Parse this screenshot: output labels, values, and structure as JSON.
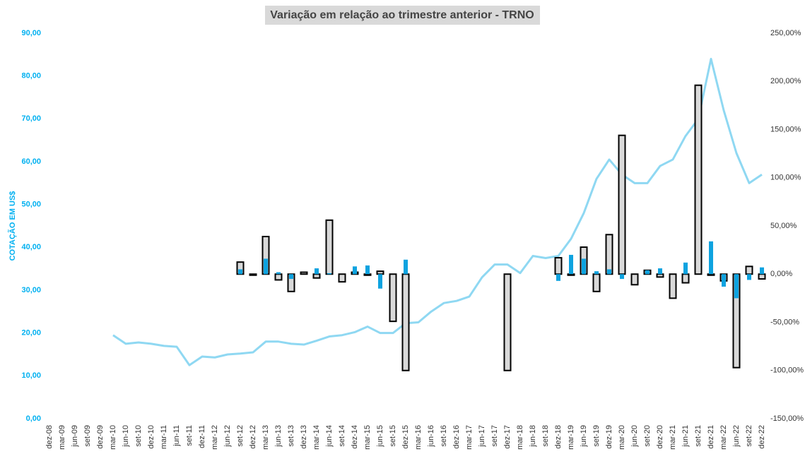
{
  "chart_data": {
    "type": "combo",
    "title": "Variação em relação ao trimestre anterior - TRNO",
    "y_label": "COTAÇÃO EM US$",
    "categories": [
      "dez-08",
      "mar-09",
      "jun-09",
      "set-09",
      "dez-09",
      "mar-10",
      "jun-10",
      "set-10",
      "dez-10",
      "mar-11",
      "jun-11",
      "set-11",
      "dez-11",
      "mar-12",
      "jun-12",
      "set-12",
      "dez-12",
      "mar-13",
      "jun-13",
      "set-13",
      "dez-13",
      "mar-14",
      "jun-14",
      "set-14",
      "dez-14",
      "mar-15",
      "jun-15",
      "set-15",
      "dez-15",
      "mar-16",
      "jun-16",
      "set-16",
      "dez-16",
      "mar-17",
      "jun-17",
      "set-17",
      "dez-17",
      "mar-18",
      "jun-18",
      "set-18",
      "dez-18",
      "mar-19",
      "jun-19",
      "set-19",
      "dez-19",
      "mar-20",
      "jun-20",
      "set-20",
      "dez-20",
      "mar-21",
      "jun-21",
      "set-21",
      "dez-21",
      "mar-22",
      "jun-22",
      "set-22",
      "dez-22"
    ],
    "series": [
      {
        "type": "bar",
        "axis": "y2",
        "color": "#d9d9d9",
        "stroke": "#000000",
        "values": [
          null,
          null,
          null,
          null,
          null,
          null,
          null,
          null,
          null,
          null,
          null,
          null,
          null,
          null,
          null,
          12.5,
          -1,
          39,
          -6,
          -18,
          2,
          -4,
          56,
          -8,
          2,
          -1,
          3,
          -49,
          -100,
          null,
          null,
          null,
          null,
          null,
          null,
          null,
          -100,
          null,
          null,
          null,
          17,
          -1,
          28,
          -18,
          41,
          144,
          -11,
          4,
          -3,
          -25,
          -9,
          196,
          -1,
          -7,
          -97,
          8,
          -5
        ]
      },
      {
        "type": "bar",
        "axis": "y2",
        "color": "#0ea3e0",
        "values": [
          null,
          null,
          null,
          null,
          null,
          null,
          null,
          null,
          null,
          null,
          null,
          null,
          null,
          null,
          null,
          5,
          null,
          16,
          2,
          -5,
          null,
          6,
          1,
          null,
          8,
          9,
          -15,
          null,
          15,
          null,
          null,
          null,
          null,
          null,
          null,
          null,
          null,
          null,
          null,
          null,
          -7,
          20,
          16,
          3,
          5,
          -5,
          null,
          4,
          6,
          null,
          12,
          null,
          34,
          -13,
          -25,
          -6,
          7
        ]
      },
      {
        "type": "line",
        "axis": "y",
        "color": "#8fd8f2",
        "values": [
          null,
          null,
          null,
          null,
          null,
          19.5,
          17.5,
          17.8,
          17.5,
          17.0,
          16.8,
          12.5,
          14.5,
          14.3,
          15.0,
          15.2,
          15.5,
          18.0,
          18.0,
          17.5,
          17.3,
          18.2,
          19.2,
          19.5,
          20.2,
          21.5,
          20.0,
          20.0,
          22.3,
          22.5,
          25.0,
          27.0,
          27.5,
          28.5,
          33.0,
          36.0,
          36.0,
          34.0,
          38.0,
          37.5,
          38.0,
          42.0,
          48.0,
          56.0,
          60.5,
          57.0,
          55.0,
          55.0,
          59.0,
          60.5,
          66.0,
          70.0,
          84.0,
          72.0,
          62.0,
          55.0,
          57.0
        ]
      }
    ],
    "ylim": [
      0,
      90
    ],
    "yticks": [
      {
        "value": 0,
        "label": "0,00"
      },
      {
        "value": 10,
        "label": "10,00"
      },
      {
        "value": 20,
        "label": "20,00"
      },
      {
        "value": 30,
        "label": "30,00"
      },
      {
        "value": 40,
        "label": "40,00"
      },
      {
        "value": 50,
        "label": "50,00"
      },
      {
        "value": 60,
        "label": "60,00"
      },
      {
        "value": 70,
        "label": "70,00"
      },
      {
        "value": 80,
        "label": "80,00"
      },
      {
        "value": 90,
        "label": "90,00"
      }
    ],
    "y2lim": [
      -150,
      250
    ],
    "y2ticks": [
      {
        "value": -150,
        "label": "-150,00%"
      },
      {
        "value": -100,
        "label": "-100,00%"
      },
      {
        "value": -50,
        "label": "-50,00%"
      },
      {
        "value": 0,
        "label": "0,00%"
      },
      {
        "value": 50,
        "label": "50,00%"
      },
      {
        "value": 100,
        "label": "100,00%"
      },
      {
        "value": 150,
        "label": "150,00%"
      },
      {
        "value": 200,
        "label": "200,00%"
      },
      {
        "value": 250,
        "label": "250,00%"
      }
    ],
    "grid": false
  }
}
